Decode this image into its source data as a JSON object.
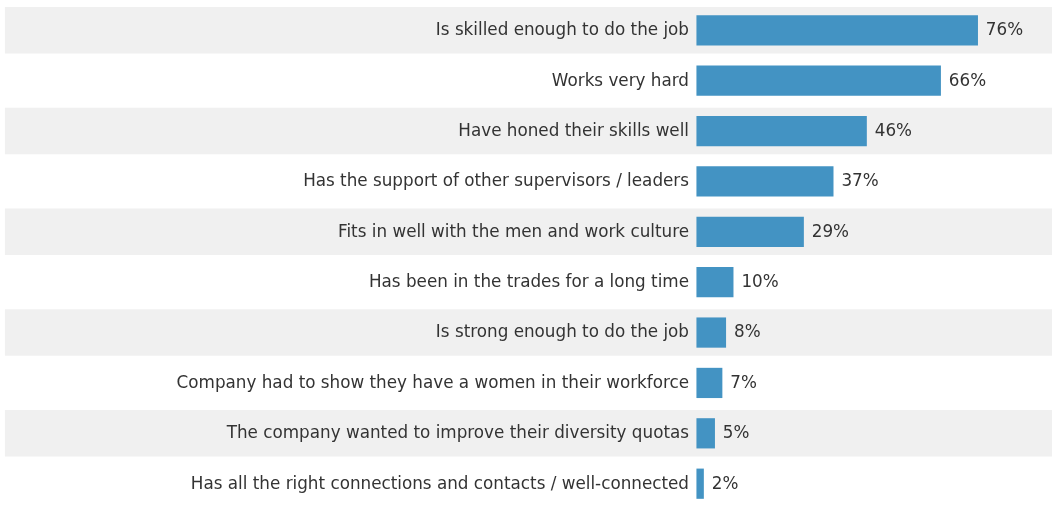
{
  "chart_data": {
    "type": "bar",
    "orientation": "horizontal",
    "categories": [
      "Is skilled enough to do the job",
      "Works very hard",
      "Have honed their skills well",
      "Has the support of other supervisors / leaders",
      "Fits in well with the men and work culture",
      "Has been in the trades for a long time",
      "Is strong enough to do the job",
      "Company had to show they have a women in their workforce",
      "The company wanted to improve their diversity quotas",
      "Has all the right connections and contacts / well-connected"
    ],
    "values": [
      76,
      66,
      46,
      37,
      29,
      10,
      8,
      7,
      5,
      2
    ],
    "value_labels": [
      "76%",
      "66%",
      "46%",
      "37%",
      "29%",
      "10%",
      "8%",
      "7%",
      "5%",
      "2%"
    ],
    "color": "#4393c3",
    "bands": [
      {
        "axis": "y",
        "from": "Is skilled enough to do the job",
        "to": "Is skilled enough to do the job",
        "color": "#f0f0f0"
      },
      {
        "axis": "y",
        "from": "Have honed their skills well",
        "to": "Have honed their skills well",
        "color": "#f0f0f0"
      },
      {
        "axis": "y",
        "from": "Fits in well with the men and work culture",
        "to": "Fits in well with the men and work culture",
        "color": "#f0f0f0"
      },
      {
        "axis": "y",
        "from": "Is strong enough to do the job",
        "to": "Is strong enough to do the job",
        "color": "#f0f0f0"
      },
      {
        "axis": "y",
        "from": "The company wanted to improve their diversity quotas",
        "to": "The company wanted to improve their diversity quotas",
        "color": "#f0f0f0"
      }
    ]
  }
}
